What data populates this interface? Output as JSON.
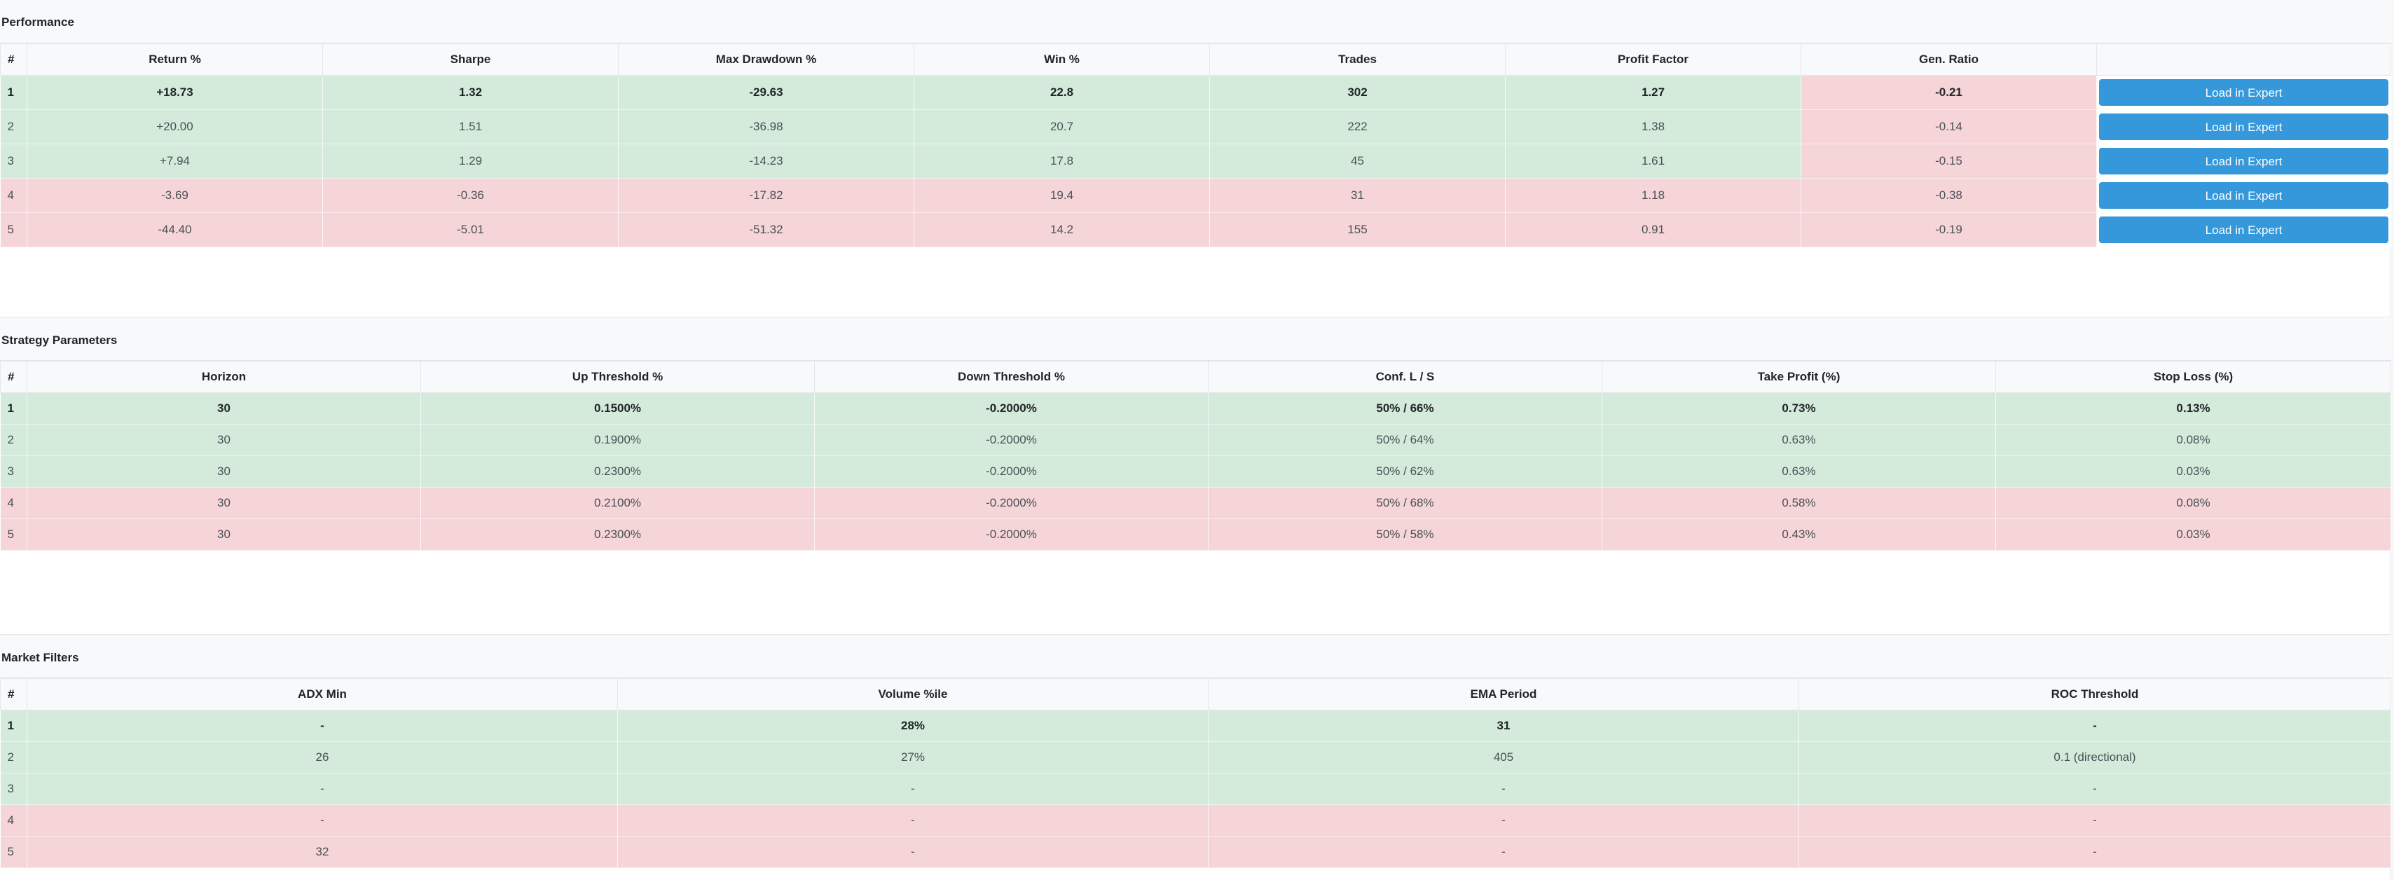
{
  "performance": {
    "title": "Performance",
    "headers": [
      "#",
      "Return %",
      "Sharpe",
      "Max Drawdown %",
      "Win %",
      "Trades",
      "Profit Factor",
      "Gen. Ratio",
      ""
    ],
    "button_label": "Load in Expert",
    "rows": [
      [
        "1",
        "+18.73",
        "1.32",
        "-29.63",
        "22.8",
        "302",
        "1.27",
        "-0.21"
      ],
      [
        "2",
        "+20.00",
        "1.51",
        "-36.98",
        "20.7",
        "222",
        "1.38",
        "-0.14"
      ],
      [
        "3",
        "+7.94",
        "1.29",
        "-14.23",
        "17.8",
        "45",
        "1.61",
        "-0.15"
      ],
      [
        "4",
        "-3.69",
        "-0.36",
        "-17.82",
        "19.4",
        "31",
        "1.18",
        "-0.38"
      ],
      [
        "5",
        "-44.40",
        "-5.01",
        "-51.32",
        "14.2",
        "155",
        "0.91",
        "-0.19"
      ]
    ]
  },
  "strategy": {
    "title": "Strategy Parameters",
    "headers": [
      "#",
      "Horizon",
      "Up Threshold %",
      "Down Threshold %",
      "Conf. L / S",
      "Take Profit (%)",
      "Stop Loss (%)"
    ],
    "rows": [
      [
        "1",
        "30",
        "0.1500%",
        "-0.2000%",
        "50% / 66%",
        "0.73%",
        "0.13%"
      ],
      [
        "2",
        "30",
        "0.1900%",
        "-0.2000%",
        "50% / 64%",
        "0.63%",
        "0.08%"
      ],
      [
        "3",
        "30",
        "0.2300%",
        "-0.2000%",
        "50% / 62%",
        "0.63%",
        "0.03%"
      ],
      [
        "4",
        "30",
        "0.2100%",
        "-0.2000%",
        "50% / 68%",
        "0.58%",
        "0.08%"
      ],
      [
        "5",
        "30",
        "0.2300%",
        "-0.2000%",
        "50% / 58%",
        "0.43%",
        "0.03%"
      ]
    ]
  },
  "market": {
    "title": "Market Filters",
    "headers": [
      "#",
      "ADX Min",
      "Volume %ile",
      "EMA Period",
      "ROC Threshold"
    ],
    "rows": [
      [
        "1",
        "-",
        "28%",
        "31",
        "-"
      ],
      [
        "2",
        "26",
        "27%",
        "405",
        "0.1 (directional)"
      ],
      [
        "3",
        "-",
        "-",
        "-",
        "-"
      ],
      [
        "4",
        "-",
        "-",
        "-",
        "-"
      ],
      [
        "5",
        "32",
        "-",
        "-",
        "-"
      ]
    ]
  },
  "colors": {
    "positive_row": "#d4ebdb",
    "negative_row": "#f6d5d8",
    "button": "#3498db"
  }
}
